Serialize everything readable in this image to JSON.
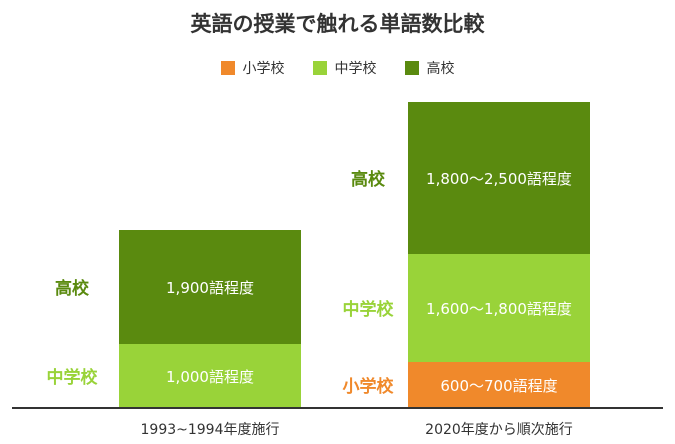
{
  "chart_data": {
    "type": "bar",
    "stacked": true,
    "title": "英語の授業で触れる単語数比較",
    "legend_position": "top-center",
    "colors": {
      "小学校": "#f0892b",
      "中学校": "#99d339",
      "高校": "#5a8a0f"
    },
    "series_order": [
      "小学校",
      "中学校",
      "高校"
    ],
    "legend": [
      "小学校",
      "中学校",
      "高校"
    ],
    "categories": [
      "1993~1994年度施行",
      "2020年度から順次施行"
    ],
    "bars": [
      {
        "category": "1993~1994年度施行",
        "segments": [
          {
            "series": "中学校",
            "label": "1,000語程度",
            "min": 1000,
            "max": 1000
          },
          {
            "series": "高校",
            "label": "1,900語程度",
            "min": 1900,
            "max": 1900
          }
        ]
      },
      {
        "category": "2020年度から順次施行",
        "segments": [
          {
            "series": "小学校",
            "label": "600〜700語程度",
            "min": 600,
            "max": 700
          },
          {
            "series": "中学校",
            "label": "1,600〜1,800語程度",
            "min": 1600,
            "max": 1800
          },
          {
            "series": "高校",
            "label": "1,800〜2,500語程度",
            "min": 1800,
            "max": 2500
          }
        ]
      }
    ]
  }
}
